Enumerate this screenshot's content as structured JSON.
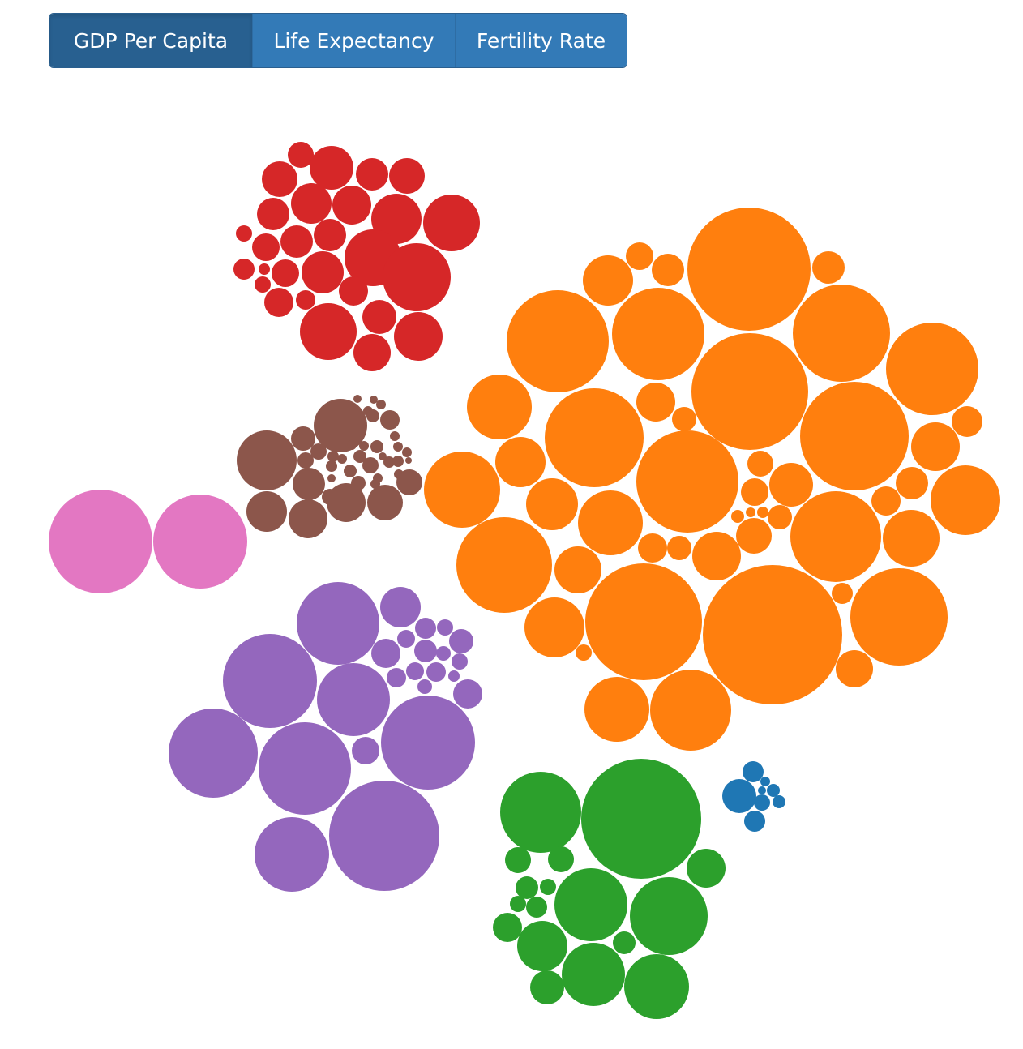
{
  "controls": {
    "buttons": [
      {
        "label": "GDP Per Capita",
        "active": true
      },
      {
        "label": "Life Expectancy",
        "active": false
      },
      {
        "label": "Fertility Rate",
        "active": false
      }
    ]
  },
  "chart_data": {
    "type": "packed-bubble",
    "groups": [
      {
        "color": "#d62728"
      },
      {
        "color": "#ff7f0e"
      },
      {
        "color": "#8c564b"
      },
      {
        "color": "#e377c2"
      },
      {
        "color": "#9467bd"
      },
      {
        "color": "#2ca02c"
      },
      {
        "color": "#1f77b4"
      }
    ]
  }
}
